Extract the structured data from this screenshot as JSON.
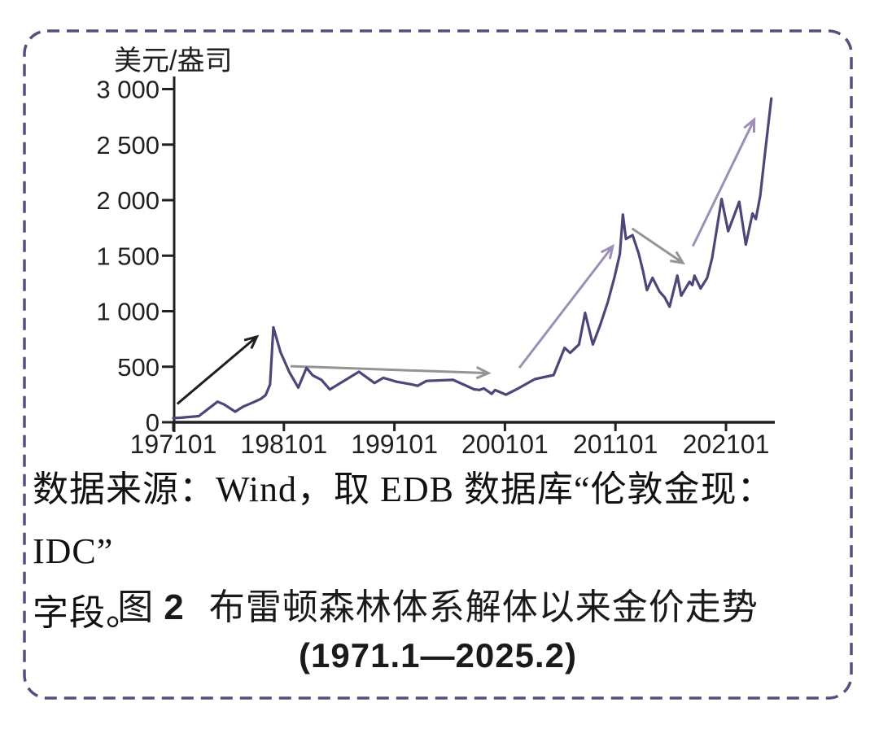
{
  "figure": {
    "border_color": "#54507d",
    "background_color": "#ffffff",
    "axis_color": "#221f20"
  },
  "chart_data": {
    "type": "line",
    "title": "布雷顿森林体系解体以来金价走势",
    "period": "1971.1—2025.2",
    "unit_label": "美元/盎司",
    "ylabel": "美元/盎司",
    "xlabel": "",
    "grid": false,
    "legend": "none",
    "ylim": [
      0,
      3000
    ],
    "xlim": [
      1971,
      2025.4
    ],
    "y_ticks": [
      {
        "value": 0,
        "label": "0"
      },
      {
        "value": 500,
        "label": "500"
      },
      {
        "value": 1000,
        "label": "1 000"
      },
      {
        "value": 1500,
        "label": "1 500"
      },
      {
        "value": 2000,
        "label": "2 000"
      },
      {
        "value": 2500,
        "label": "2 500"
      },
      {
        "value": 3000,
        "label": "3 000"
      }
    ],
    "x_ticks": [
      {
        "year": 1971,
        "label": "197101"
      },
      {
        "year": 1981,
        "label": "198101"
      },
      {
        "year": 1991,
        "label": "199101"
      },
      {
        "year": 2001,
        "label": "200101"
      },
      {
        "year": 2011,
        "label": "201101"
      },
      {
        "year": 2021,
        "label": "202101"
      }
    ],
    "series": [
      {
        "name": "伦敦金现: IDC（美元/盎司）",
        "color": "#4f4579",
        "points": [
          [
            1971.0,
            37
          ],
          [
            1971.7,
            41
          ],
          [
            1972.3,
            47
          ],
          [
            1973.3,
            55
          ],
          [
            1975.0,
            185
          ],
          [
            1975.6,
            160
          ],
          [
            1976.6,
            95
          ],
          [
            1977.3,
            140
          ],
          [
            1978.2,
            178
          ],
          [
            1978.9,
            210
          ],
          [
            1979.35,
            245
          ],
          [
            1979.75,
            340
          ],
          [
            1980.05,
            855
          ],
          [
            1980.7,
            630
          ],
          [
            1981.5,
            450
          ],
          [
            1982.3,
            312
          ],
          [
            1983.05,
            490
          ],
          [
            1983.6,
            423
          ],
          [
            1984.4,
            382
          ],
          [
            1985.15,
            295
          ],
          [
            1987.8,
            455
          ],
          [
            1989.2,
            353
          ],
          [
            1990.0,
            400
          ],
          [
            1991.2,
            365
          ],
          [
            1992.6,
            340
          ],
          [
            1993.1,
            328
          ],
          [
            1993.9,
            372
          ],
          [
            1996.3,
            382
          ],
          [
            1997.4,
            333
          ],
          [
            1998.2,
            297
          ],
          [
            1998.7,
            291
          ],
          [
            1999.1,
            305
          ],
          [
            1999.8,
            256
          ],
          [
            2000.1,
            290
          ],
          [
            2001.1,
            248
          ],
          [
            2002.2,
            305
          ],
          [
            2003.7,
            388
          ],
          [
            2005.4,
            425
          ],
          [
            2006.4,
            670
          ],
          [
            2006.9,
            625
          ],
          [
            2007.7,
            700
          ],
          [
            2008.25,
            985
          ],
          [
            2008.95,
            700
          ],
          [
            2009.6,
            870
          ],
          [
            2010.3,
            1080
          ],
          [
            2010.9,
            1300
          ],
          [
            2011.4,
            1515
          ],
          [
            2011.67,
            1870
          ],
          [
            2011.95,
            1650
          ],
          [
            2012.55,
            1685
          ],
          [
            2013.1,
            1520
          ],
          [
            2013.5,
            1360
          ],
          [
            2013.85,
            1190
          ],
          [
            2014.35,
            1300
          ],
          [
            2015.0,
            1175
          ],
          [
            2015.45,
            1125
          ],
          [
            2015.9,
            1040
          ],
          [
            2016.6,
            1320
          ],
          [
            2016.95,
            1140
          ],
          [
            2017.7,
            1265
          ],
          [
            2017.95,
            1235
          ],
          [
            2018.15,
            1320
          ],
          [
            2018.7,
            1205
          ],
          [
            2019.3,
            1300
          ],
          [
            2019.75,
            1480
          ],
          [
            2020.6,
            2010
          ],
          [
            2021.2,
            1720
          ],
          [
            2022.2,
            1985
          ],
          [
            2022.8,
            1600
          ],
          [
            2023.4,
            1880
          ],
          [
            2023.7,
            1830
          ],
          [
            2024.1,
            2040
          ],
          [
            2024.5,
            2395
          ],
          [
            2025.1,
            2915
          ]
        ]
      }
    ],
    "trend_arrows": [
      {
        "from": [
          1971.35,
          165
        ],
        "to": [
          1978.55,
          770
        ],
        "color": "#1f1f1f"
      },
      {
        "from": [
          1981.6,
          505
        ],
        "to": [
          1999.5,
          442
        ],
        "color": "#949494"
      },
      {
        "from": [
          2002.3,
          490
        ],
        "to": [
          2010.75,
          1585
        ],
        "color": "#9c8eb5"
      },
      {
        "from": [
          2012.5,
          1745
        ],
        "to": [
          2017.1,
          1435
        ],
        "color": "#949494"
      },
      {
        "from": [
          2018.0,
          1585
        ],
        "to": [
          2023.55,
          2725
        ],
        "color": "#9c8eb5"
      }
    ]
  },
  "source_note": {
    "line1": "数据来源：Wind，取 EDB 数据库“伦敦金现：IDC”",
    "line2": "字段。"
  },
  "caption": {
    "fig_word": "图",
    "fig_number": "2",
    "title": "布雷顿森林体系解体以来金价走势",
    "period": "(1971.1—2025.2)"
  }
}
